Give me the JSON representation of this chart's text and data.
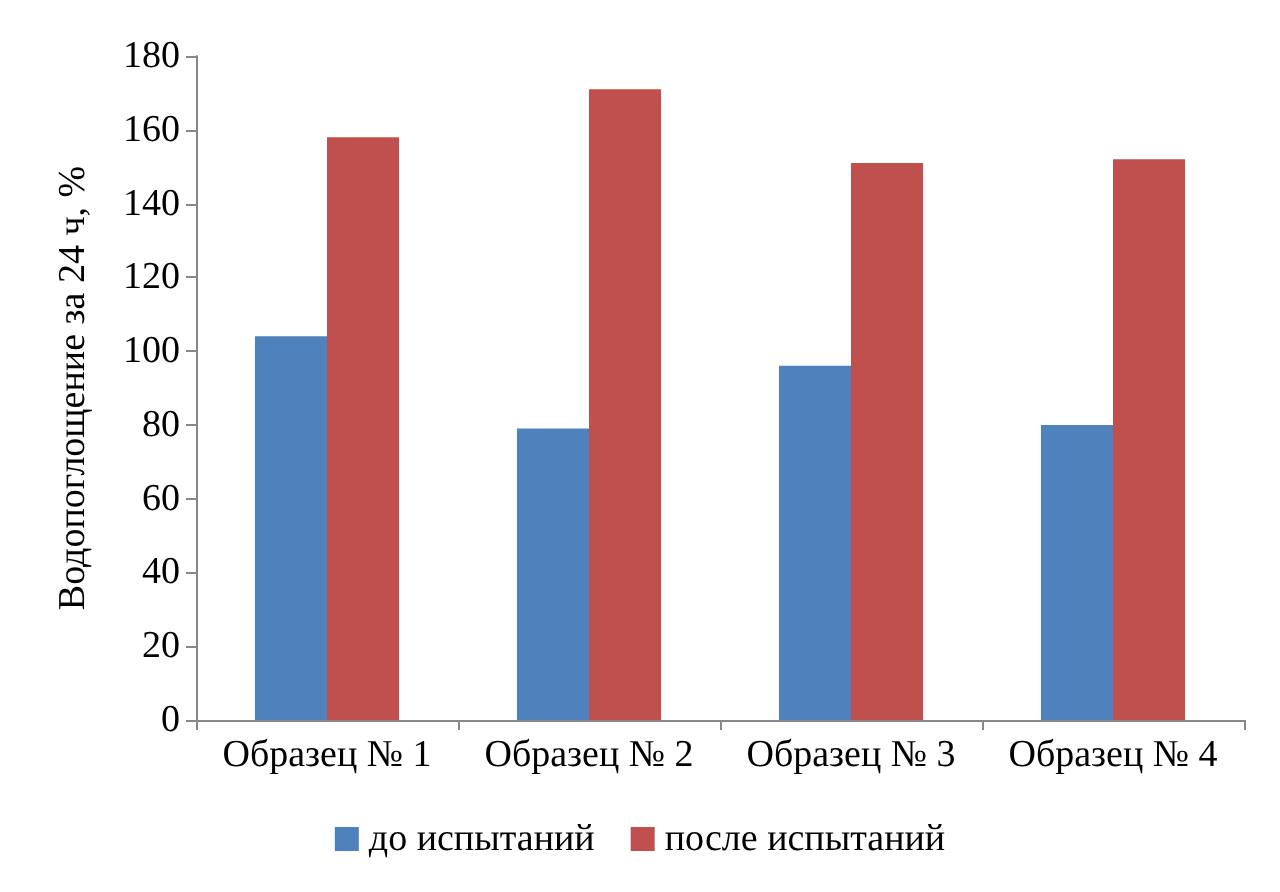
{
  "chart_data": {
    "type": "bar",
    "ylabel": "Водопоглощение за 24 ч, %",
    "categories": [
      "Образец № 1",
      "Образец № 2",
      "Образец № 3",
      "Образец № 4"
    ],
    "series": [
      {
        "name": "до испытаний",
        "color": "#4f81bd",
        "values": [
          104,
          79,
          96,
          80
        ]
      },
      {
        "name": "после испытаний",
        "color": "#c0504d",
        "values": [
          158,
          171,
          151,
          152
        ]
      }
    ],
    "ylim": [
      0,
      180
    ],
    "yticks": [
      0,
      20,
      40,
      60,
      80,
      100,
      120,
      140,
      160,
      180
    ],
    "grid": false,
    "legend": "bottom"
  }
}
